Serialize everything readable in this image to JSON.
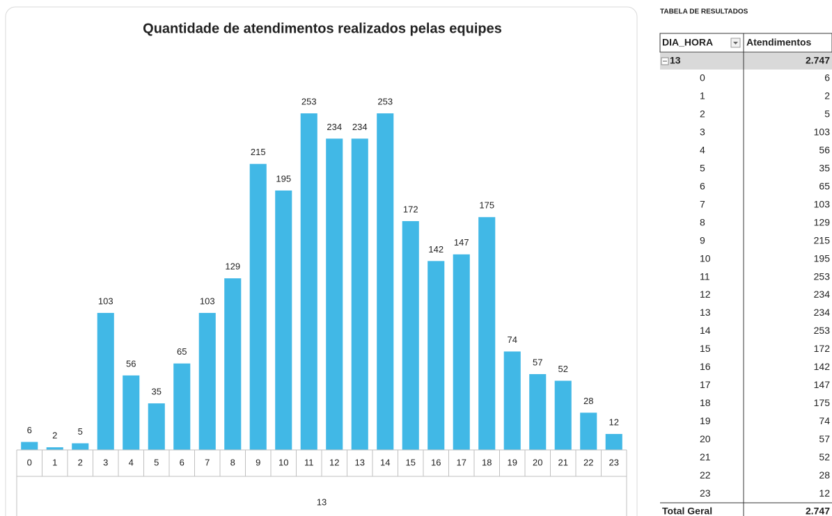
{
  "chart_data": {
    "type": "bar",
    "title": "Quantidade de atendimentos realizados pelas equipes",
    "categories": [
      "0",
      "1",
      "2",
      "3",
      "4",
      "5",
      "6",
      "7",
      "8",
      "9",
      "10",
      "11",
      "12",
      "13",
      "14",
      "15",
      "16",
      "17",
      "18",
      "19",
      "20",
      "21",
      "22",
      "23"
    ],
    "group": "13",
    "values": [
      6,
      2,
      5,
      103,
      56,
      35,
      65,
      103,
      129,
      215,
      195,
      253,
      234,
      234,
      253,
      172,
      142,
      147,
      175,
      74,
      57,
      52,
      28,
      12
    ],
    "color": "#41b8e6"
  },
  "table": {
    "title": "TABELA DE RESULTADOS",
    "header": [
      "DIA_HORA",
      "Atendimentos"
    ],
    "group": [
      "13",
      "2.747"
    ],
    "rows": [
      [
        "0",
        "6"
      ],
      [
        "1",
        "2"
      ],
      [
        "2",
        "5"
      ],
      [
        "3",
        "103"
      ],
      [
        "4",
        "56"
      ],
      [
        "5",
        "35"
      ],
      [
        "6",
        "65"
      ],
      [
        "7",
        "103"
      ],
      [
        "8",
        "129"
      ],
      [
        "9",
        "215"
      ],
      [
        "10",
        "195"
      ],
      [
        "11",
        "253"
      ],
      [
        "12",
        "234"
      ],
      [
        "13",
        "234"
      ],
      [
        "14",
        "253"
      ],
      [
        "15",
        "172"
      ],
      [
        "16",
        "142"
      ],
      [
        "17",
        "147"
      ],
      [
        "18",
        "175"
      ],
      [
        "19",
        "74"
      ],
      [
        "20",
        "57"
      ],
      [
        "21",
        "52"
      ],
      [
        "22",
        "28"
      ],
      [
        "23",
        "12"
      ]
    ],
    "total": [
      "Total Geral",
      "2.747"
    ]
  }
}
